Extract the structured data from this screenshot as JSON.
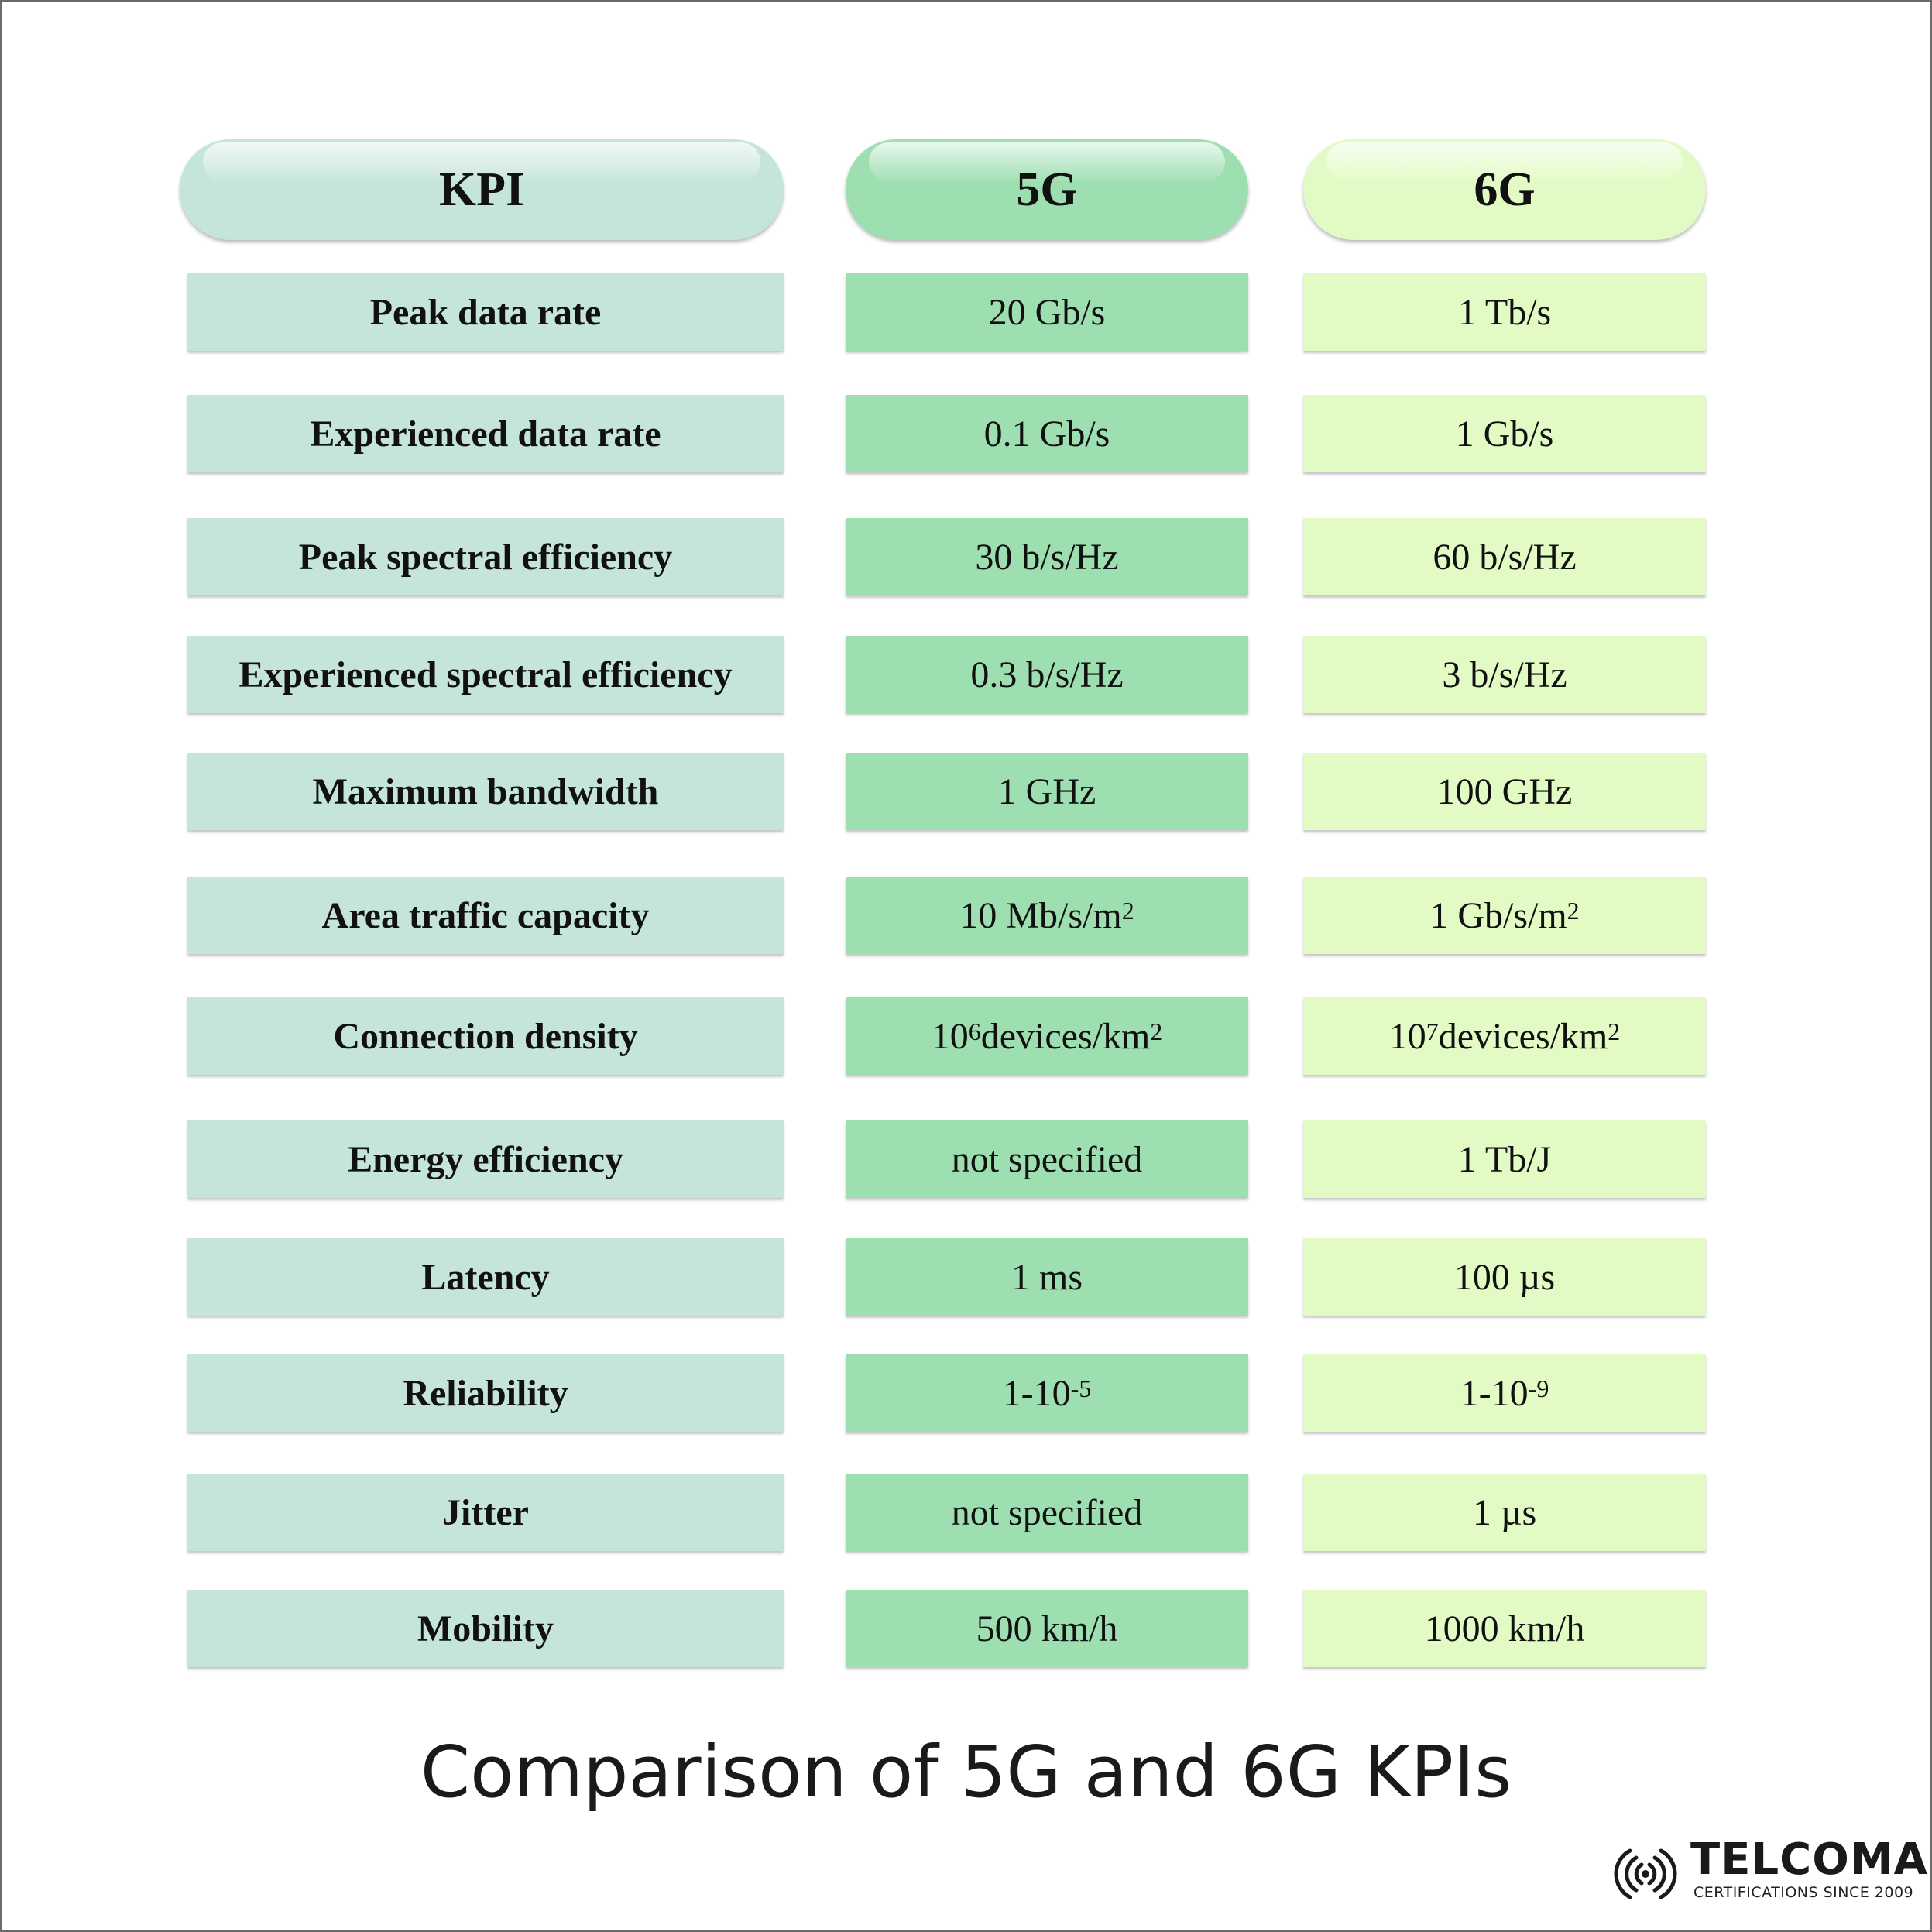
{
  "chart_data": {
    "type": "table",
    "title": "Comparison of 5G and 6G KPIs",
    "columns": [
      "KPI",
      "5G",
      "6G"
    ],
    "rows": [
      {
        "kpi": "Peak data rate",
        "g5": {
          "base": "20 Gb/s"
        },
        "g6": {
          "base": "1 Tb/s"
        }
      },
      {
        "kpi": "Experienced data rate",
        "g5": {
          "base": "0.1 Gb/s"
        },
        "g6": {
          "base": "1 Gb/s"
        }
      },
      {
        "kpi": "Peak spectral efficiency",
        "g5": {
          "base": "30 b/s/Hz"
        },
        "g6": {
          "base": "60 b/s/Hz"
        }
      },
      {
        "kpi": "Experienced spectral efficiency",
        "g5": {
          "base": "0.3 b/s/Hz"
        },
        "g6": {
          "base": "3 b/s/Hz"
        }
      },
      {
        "kpi": "Maximum bandwidth",
        "g5": {
          "base": "1 GHz"
        },
        "g6": {
          "base": "100 GHz"
        }
      },
      {
        "kpi": "Area traffic capacity",
        "g5": {
          "base": "10 Mb/s/m",
          "sup": "2"
        },
        "g6": {
          "base": "1 Gb/s/m",
          "sup": "2"
        }
      },
      {
        "kpi": "Connection density",
        "g5": {
          "base": "10",
          "sup": "6",
          "rest": " devices/km",
          "sup2": "2"
        },
        "g6": {
          "base": "10",
          "sup": "7",
          "rest": " devices/km",
          "sup2": "2"
        }
      },
      {
        "kpi": "Energy efficiency",
        "g5": {
          "base": "not specified"
        },
        "g6": {
          "base": "1 Tb/J"
        }
      },
      {
        "kpi": "Latency",
        "g5": {
          "base": "1 ms"
        },
        "g6": {
          "base": "100 µs"
        }
      },
      {
        "kpi": "Reliability",
        "g5": {
          "base": "1-10",
          "sup": "-5"
        },
        "g6": {
          "base": "1-10",
          "sup": "-9"
        }
      },
      {
        "kpi": "Jitter",
        "g5": {
          "base": "not specified"
        },
        "g6": {
          "base": "1 µs"
        }
      },
      {
        "kpi": "Mobility",
        "g5": {
          "base": "500 km/h"
        },
        "g6": {
          "base": "1000 km/h"
        }
      }
    ],
    "colors": {
      "kpi": "#c6e5d9",
      "g5": "#9edfb1",
      "g6": "#e2fbc5"
    }
  },
  "logo": {
    "name": "TELCOMA",
    "tagline": "CERTIFICATIONS SINCE 2009",
    "icon": "signal-waves-icon"
  }
}
